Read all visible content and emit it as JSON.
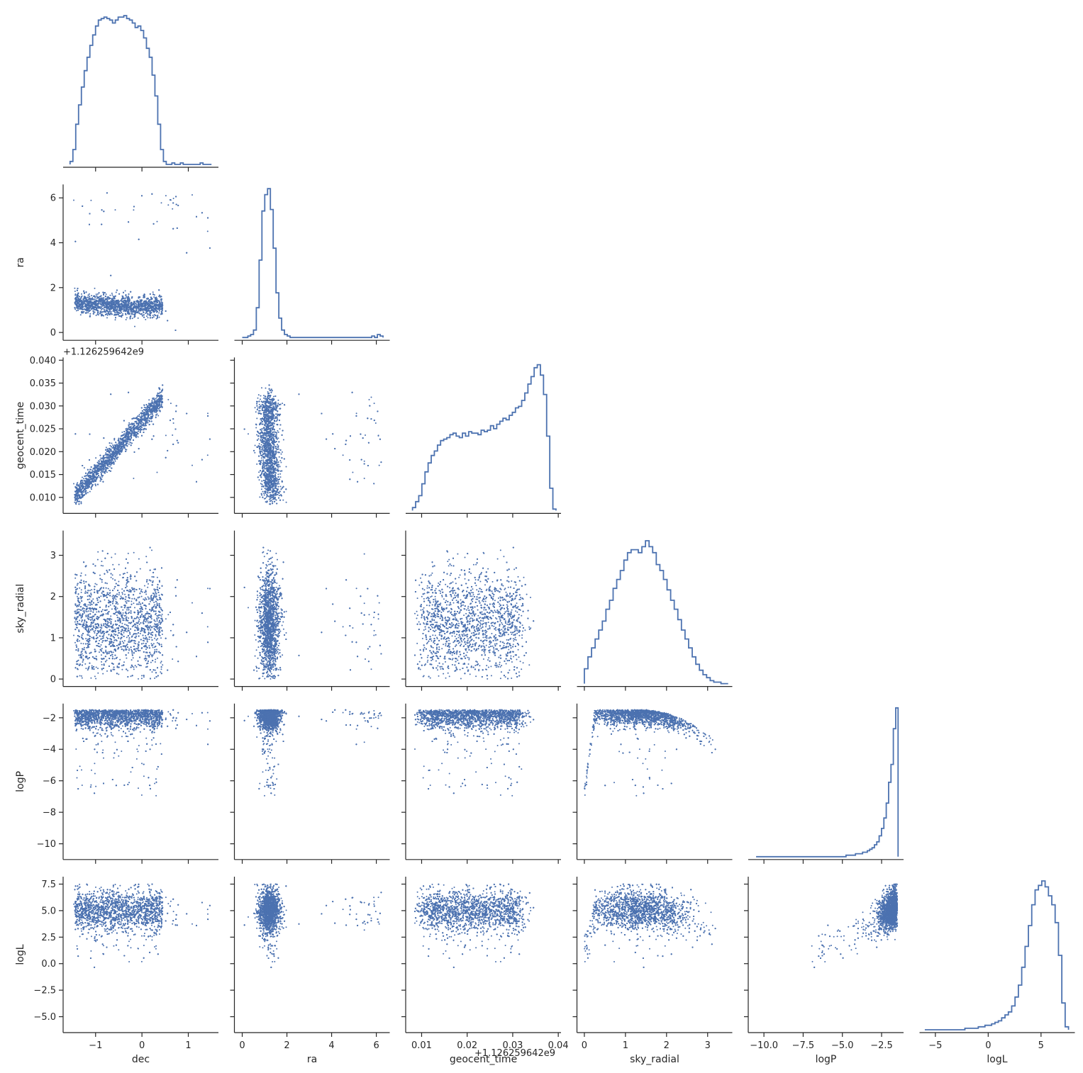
{
  "chart_data": {
    "type": "scatter",
    "title": "",
    "diag_type": "histogram-step",
    "color": "#4c72b0",
    "grid": false,
    "legend": "none",
    "variables": [
      {
        "name": "dec",
        "label": "dec",
        "lim": [
          -1.7,
          1.65
        ],
        "ticks": [
          -1,
          0,
          1
        ],
        "tick_labels": [
          "−1",
          "0",
          "1"
        ]
      },
      {
        "name": "ra",
        "label": "ra",
        "lim": [
          -0.35,
          6.6
        ],
        "ticks": [
          0,
          2,
          4,
          6
        ],
        "tick_labels": [
          "0",
          "2",
          "4",
          "6"
        ]
      },
      {
        "name": "geocent_time",
        "label": "geocent_time",
        "lim": [
          0.0065,
          0.0406
        ],
        "ticks": [
          0.01,
          0.015,
          0.02,
          0.025,
          0.03,
          0.035,
          0.04
        ],
        "tick_labels": [
          "0.010",
          "0.015",
          "0.020",
          "0.025",
          "0.030",
          "0.035",
          "0.040"
        ],
        "x_ticks": [
          0.01,
          0.02,
          0.03,
          0.04
        ],
        "x_tick_labels": [
          "0.01",
          "0.02",
          "0.03",
          "0.04"
        ],
        "offset": "+1.126259642e9"
      },
      {
        "name": "sky_radial",
        "label": "sky_radial",
        "lim": [
          -0.18,
          3.6
        ],
        "ticks": [
          0,
          1,
          2,
          3
        ],
        "tick_labels": [
          "0",
          "1",
          "2",
          "3"
        ]
      },
      {
        "name": "logP",
        "label": "logP",
        "lim": [
          -11.0,
          -1.1
        ],
        "ticks": [
          -10,
          -8,
          -6,
          -4,
          -2
        ],
        "tick_labels": [
          "−10",
          "−8",
          "−6",
          "−4",
          "−2"
        ],
        "x_ticks": [
          -10,
          -7.5,
          -5,
          -2.5
        ],
        "x_tick_labels": [
          "−10.0",
          "−7.5",
          "−5.0",
          "−2.5"
        ]
      },
      {
        "name": "logL",
        "label": "logL",
        "lim": [
          -6.5,
          8.2
        ],
        "ticks": [
          -5,
          -2.5,
          0,
          2.5,
          5,
          7.5
        ],
        "tick_labels": [
          "−5.0",
          "−2.5",
          "0.0",
          "2.5",
          "5.0",
          "7.5"
        ],
        "x_ticks": [
          -5,
          0,
          5
        ],
        "x_tick_labels": [
          "−5",
          "0",
          "5"
        ]
      }
    ],
    "histograms": {
      "dec": {
        "range": [
          -1.55,
          1.5
        ],
        "counts": [
          0.02,
          0.1,
          0.27,
          0.4,
          0.52,
          0.63,
          0.72,
          0.8,
          0.87,
          0.93,
          0.97,
          0.98,
          0.99,
          0.98,
          0.97,
          0.95,
          0.97,
          0.99,
          0.99,
          1.0,
          0.98,
          0.97,
          0.95,
          0.92,
          0.93,
          0.9,
          0.85,
          0.78,
          0.72,
          0.6,
          0.46,
          0.27,
          0.1,
          0.02,
          0.0,
          0.0,
          0.01,
          0.0,
          0.0,
          0.01,
          0.0,
          0.0,
          0.0,
          0.0,
          0.0,
          0.0,
          0.01,
          0.0,
          0.0,
          0.0
        ]
      },
      "ra": {
        "range": [
          0.0,
          6.3
        ],
        "counts": [
          0.0,
          0.0,
          0.01,
          0.02,
          0.05,
          0.2,
          0.52,
          0.85,
          0.96,
          1.0,
          0.86,
          0.6,
          0.3,
          0.13,
          0.05,
          0.02,
          0.01,
          0.0,
          0.0,
          0.0,
          0.0,
          0.0,
          0.0,
          0.0,
          0.0,
          0.0,
          0.0,
          0.0,
          0.0,
          0.0,
          0.0,
          0.0,
          0.0,
          0.0,
          0.0,
          0.0,
          0.0,
          0.0,
          0.0,
          0.0,
          0.0,
          0.0,
          0.0,
          0.0,
          0.0,
          0.0,
          0.01,
          0.0,
          0.02,
          0.01
        ]
      },
      "geocent_time": {
        "range": [
          0.008,
          0.0395
        ],
        "counts": [
          0.02,
          0.06,
          0.1,
          0.18,
          0.26,
          0.32,
          0.37,
          0.4,
          0.44,
          0.47,
          0.48,
          0.49,
          0.51,
          0.52,
          0.5,
          0.49,
          0.52,
          0.5,
          0.53,
          0.52,
          0.52,
          0.51,
          0.54,
          0.53,
          0.54,
          0.57,
          0.55,
          0.58,
          0.6,
          0.62,
          0.61,
          0.64,
          0.66,
          0.69,
          0.7,
          0.74,
          0.79,
          0.85,
          0.9,
          0.96,
          0.98,
          0.91,
          0.78,
          0.5,
          0.15,
          0.01
        ]
      },
      "sky_radial": {
        "range": [
          0.0,
          3.5
        ],
        "counts": [
          0.1,
          0.18,
          0.24,
          0.3,
          0.36,
          0.42,
          0.5,
          0.56,
          0.64,
          0.7,
          0.76,
          0.83,
          0.88,
          0.9,
          0.9,
          0.88,
          0.92,
          0.96,
          0.92,
          0.88,
          0.8,
          0.76,
          0.7,
          0.63,
          0.56,
          0.5,
          0.43,
          0.36,
          0.3,
          0.24,
          0.18,
          0.13,
          0.09,
          0.06,
          0.04,
          0.02,
          0.01,
          0.01,
          0.0,
          0.0
        ]
      },
      "logP": {
        "range": [
          -10.5,
          -1.45
        ],
        "counts": [
          0.0,
          0.0,
          0.0,
          0.0,
          0.0,
          0.0,
          0.0,
          0.0,
          0.0,
          0.0,
          0.0,
          0.0,
          0.0,
          0.0,
          0.0,
          0.0,
          0.0,
          0.0,
          0.0,
          0.0,
          0.0,
          0.0,
          0.0,
          0.0,
          0.0,
          0.0,
          0.0,
          0.0,
          0.0,
          0.0,
          0.0,
          0.0,
          0.0,
          0.0,
          0.0,
          0.0,
          0.0,
          0.0,
          0.01,
          0.01,
          0.01,
          0.01,
          0.02,
          0.02,
          0.02,
          0.03,
          0.03,
          0.04,
          0.05,
          0.06,
          0.08,
          0.1,
          0.14,
          0.19,
          0.26,
          0.36,
          0.5,
          0.62,
          0.86,
          1.0
        ]
      },
      "logL": {
        "range": [
          -6.0,
          7.6
        ],
        "counts": [
          0.0,
          0.0,
          0.0,
          0.0,
          0.0,
          0.0,
          0.0,
          0.0,
          0.0,
          0.0,
          0.0,
          0.0,
          0.01,
          0.01,
          0.01,
          0.01,
          0.02,
          0.02,
          0.03,
          0.03,
          0.04,
          0.05,
          0.06,
          0.08,
          0.1,
          0.12,
          0.16,
          0.22,
          0.3,
          0.42,
          0.56,
          0.7,
          0.84,
          0.94,
          0.97,
          1.0,
          0.96,
          0.9,
          0.84,
          0.72,
          0.5,
          0.18,
          0.02
        ]
      }
    },
    "scatter_points_per_panel": 4500
  }
}
